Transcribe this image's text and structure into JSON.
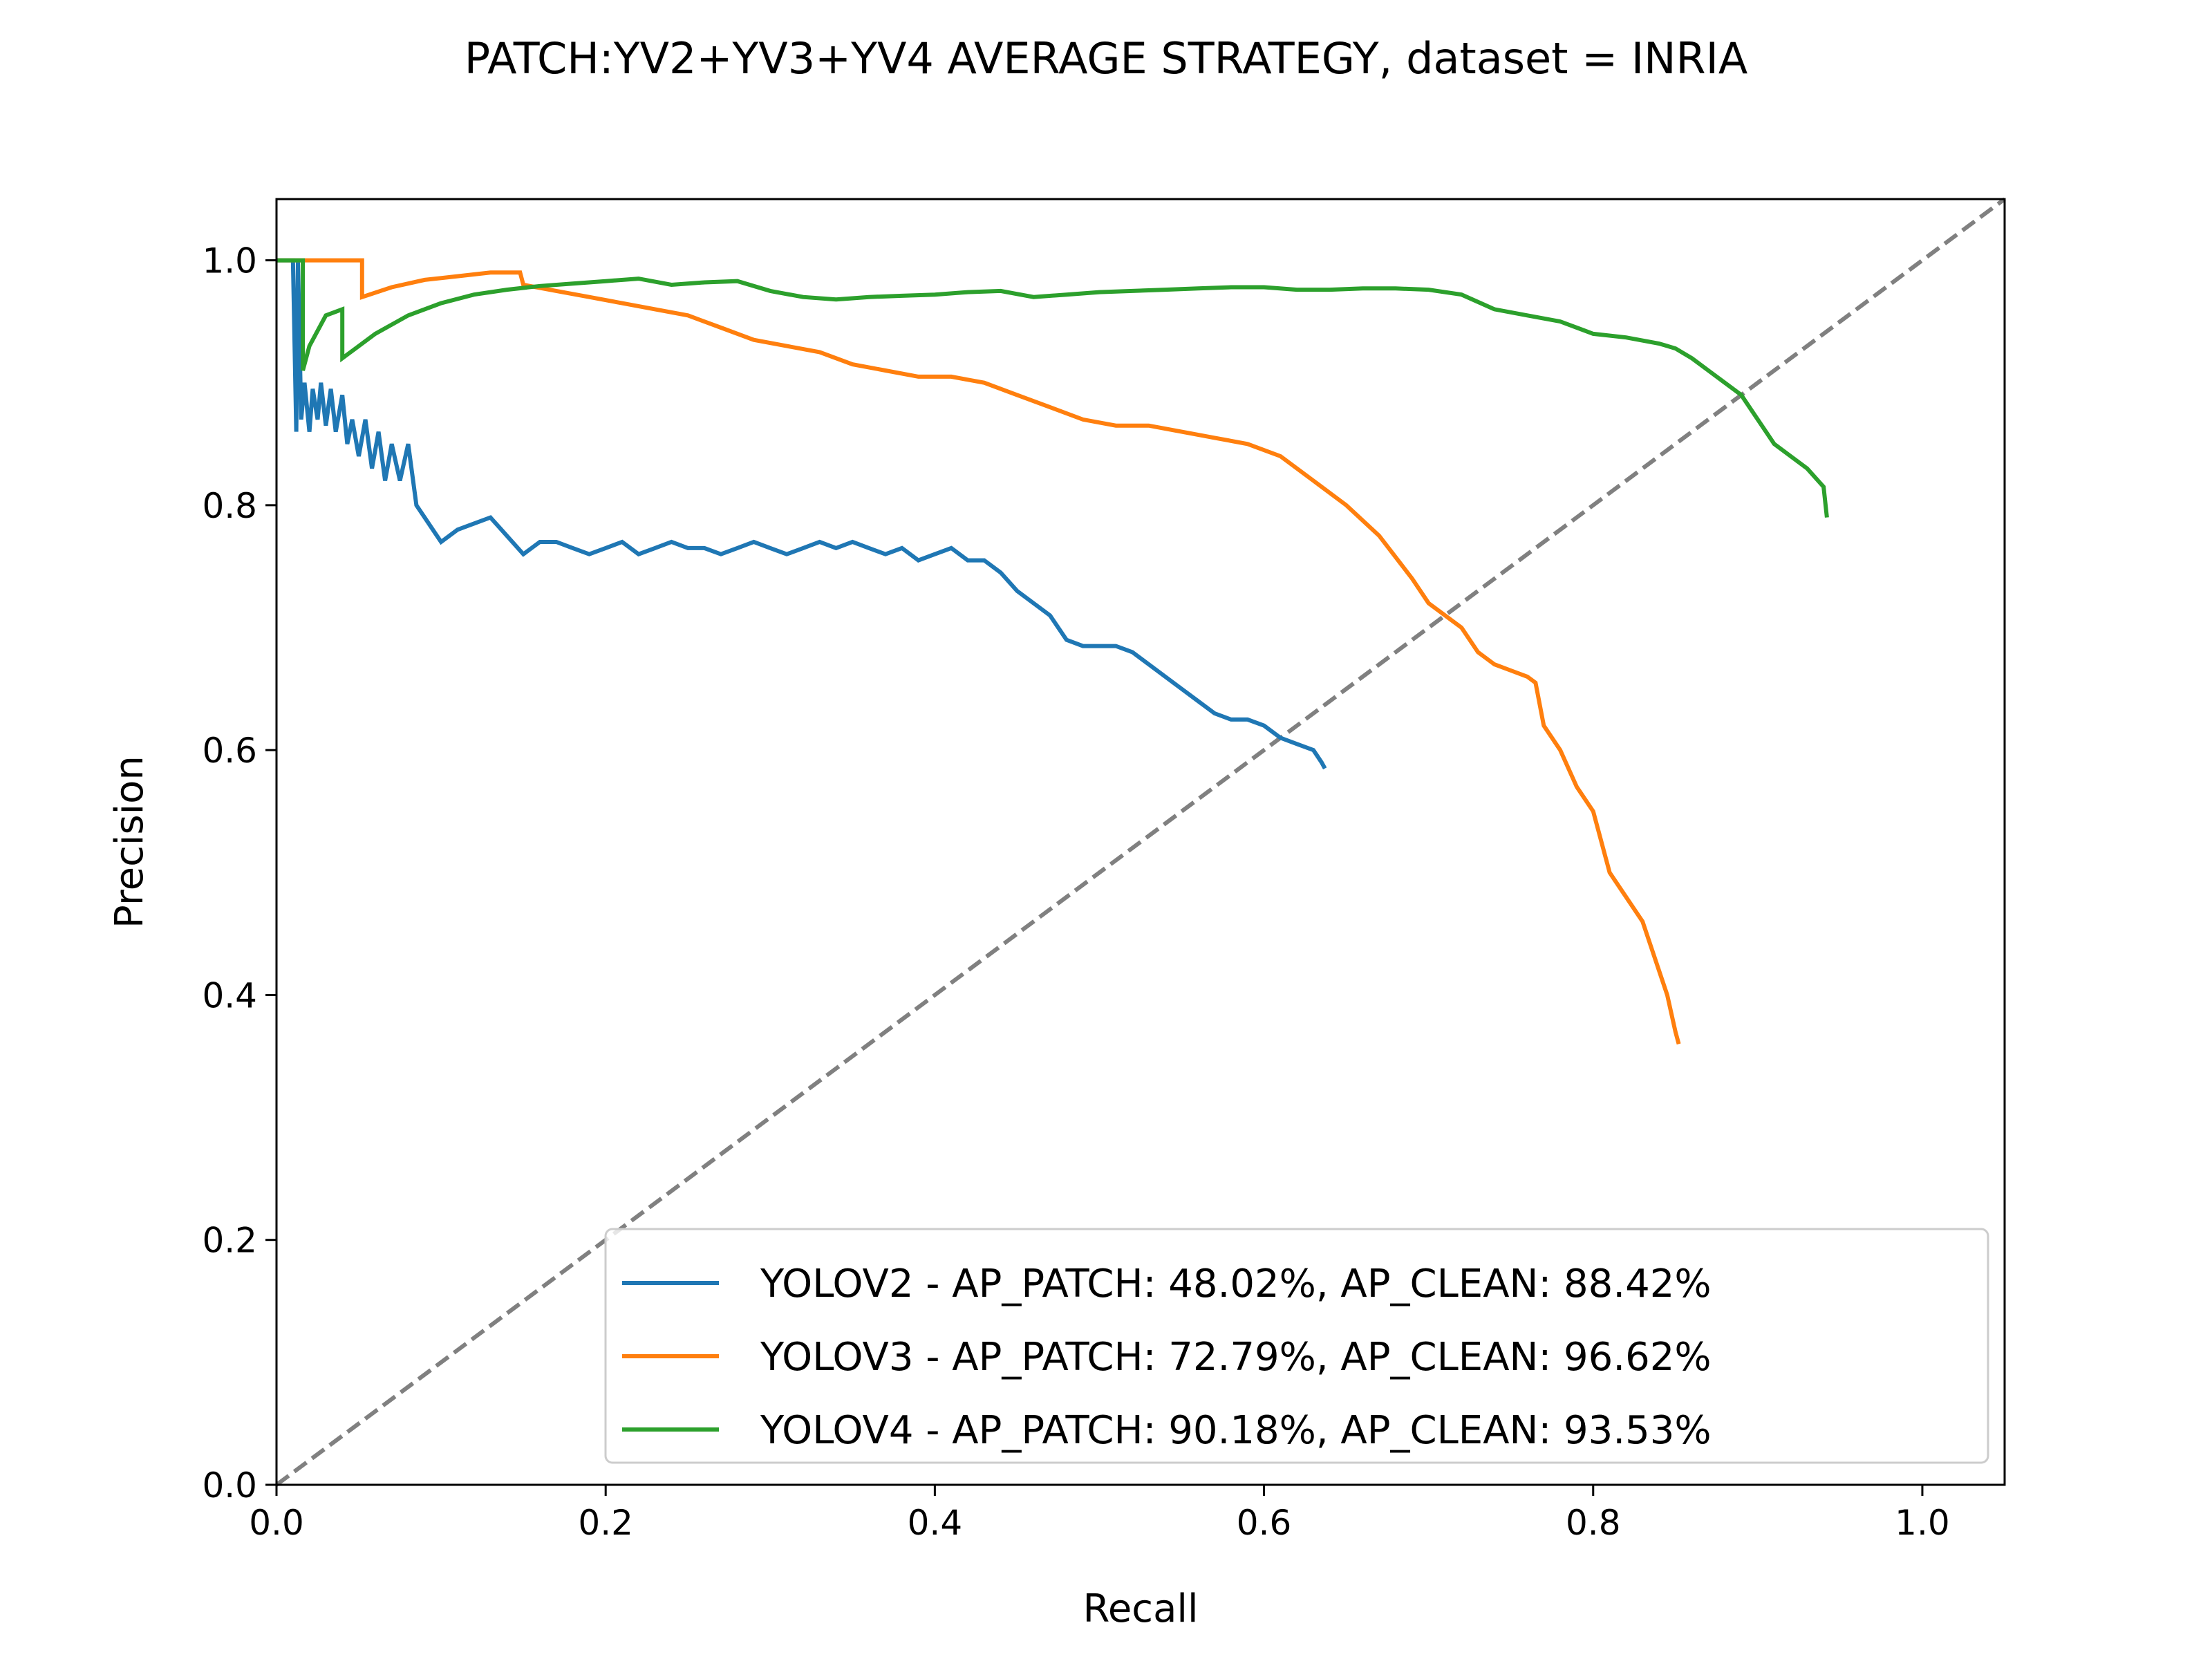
{
  "chart_data": {
    "type": "line",
    "title": "PATCH:YV2+YV3+YV4 AVERAGE STRATEGY, dataset = INRIA",
    "xlabel": "Recall",
    "ylabel": "Precision",
    "xlim": [
      0.0,
      1.05
    ],
    "ylim": [
      0.0,
      1.05
    ],
    "xticks": [
      "0.0",
      "0.2",
      "0.4",
      "0.6",
      "0.8",
      "1.0"
    ],
    "yticks": [
      "0.0",
      "0.2",
      "0.4",
      "0.6",
      "0.8",
      "1.0"
    ],
    "grid": false,
    "legend_position": "lower-right",
    "reference_line": {
      "x": [
        0.0,
        1.05
      ],
      "y": [
        0.0,
        1.05
      ],
      "color": "#808080",
      "style": "dashed"
    },
    "series": [
      {
        "name": "YOLOV2 - AP_PATCH: 48.02%, AP_CLEAN: 88.42%",
        "color": "#1f77b4",
        "x": [
          0.0,
          0.01,
          0.012,
          0.013,
          0.015,
          0.017,
          0.02,
          0.022,
          0.025,
          0.027,
          0.03,
          0.033,
          0.036,
          0.04,
          0.043,
          0.046,
          0.05,
          0.054,
          0.058,
          0.062,
          0.066,
          0.07,
          0.075,
          0.08,
          0.085,
          0.09,
          0.095,
          0.1,
          0.11,
          0.12,
          0.13,
          0.14,
          0.15,
          0.16,
          0.17,
          0.18,
          0.19,
          0.2,
          0.21,
          0.22,
          0.23,
          0.24,
          0.25,
          0.26,
          0.27,
          0.28,
          0.29,
          0.3,
          0.31,
          0.32,
          0.33,
          0.34,
          0.35,
          0.36,
          0.37,
          0.38,
          0.39,
          0.4,
          0.41,
          0.42,
          0.43,
          0.44,
          0.45,
          0.46,
          0.47,
          0.48,
          0.49,
          0.5,
          0.51,
          0.52,
          0.53,
          0.54,
          0.55,
          0.56,
          0.57,
          0.58,
          0.59,
          0.6,
          0.61,
          0.62,
          0.63,
          0.635,
          0.637
        ],
        "y": [
          1.0,
          1.0,
          0.86,
          1.0,
          0.87,
          0.9,
          0.86,
          0.895,
          0.87,
          0.9,
          0.865,
          0.895,
          0.86,
          0.89,
          0.85,
          0.87,
          0.84,
          0.87,
          0.83,
          0.86,
          0.82,
          0.85,
          0.82,
          0.85,
          0.8,
          0.79,
          0.78,
          0.77,
          0.78,
          0.785,
          0.79,
          0.775,
          0.76,
          0.77,
          0.77,
          0.765,
          0.76,
          0.765,
          0.77,
          0.76,
          0.765,
          0.77,
          0.765,
          0.765,
          0.76,
          0.765,
          0.77,
          0.765,
          0.76,
          0.765,
          0.77,
          0.765,
          0.77,
          0.765,
          0.76,
          0.765,
          0.755,
          0.76,
          0.765,
          0.755,
          0.755,
          0.745,
          0.73,
          0.72,
          0.71,
          0.69,
          0.685,
          0.685,
          0.685,
          0.68,
          0.67,
          0.66,
          0.65,
          0.64,
          0.63,
          0.625,
          0.625,
          0.62,
          0.61,
          0.605,
          0.6,
          0.59,
          0.585
        ]
      },
      {
        "name": "YOLOV3 - AP_PATCH: 72.79%, AP_CLEAN: 96.62%",
        "color": "#ff7f0e",
        "x": [
          0.0,
          0.052,
          0.052,
          0.07,
          0.09,
          0.11,
          0.13,
          0.148,
          0.15,
          0.17,
          0.19,
          0.21,
          0.23,
          0.25,
          0.27,
          0.29,
          0.31,
          0.33,
          0.35,
          0.37,
          0.39,
          0.41,
          0.43,
          0.45,
          0.47,
          0.49,
          0.51,
          0.53,
          0.55,
          0.57,
          0.59,
          0.61,
          0.63,
          0.65,
          0.67,
          0.69,
          0.7,
          0.71,
          0.72,
          0.73,
          0.74,
          0.75,
          0.76,
          0.765,
          0.77,
          0.78,
          0.79,
          0.8,
          0.81,
          0.82,
          0.83,
          0.84,
          0.845,
          0.85,
          0.852
        ],
        "y": [
          1.0,
          1.0,
          0.97,
          0.978,
          0.984,
          0.987,
          0.99,
          0.99,
          0.98,
          0.975,
          0.97,
          0.965,
          0.96,
          0.955,
          0.945,
          0.935,
          0.93,
          0.925,
          0.915,
          0.91,
          0.905,
          0.905,
          0.9,
          0.89,
          0.88,
          0.87,
          0.865,
          0.865,
          0.86,
          0.855,
          0.85,
          0.84,
          0.82,
          0.8,
          0.775,
          0.74,
          0.72,
          0.71,
          0.7,
          0.68,
          0.67,
          0.665,
          0.66,
          0.655,
          0.62,
          0.6,
          0.57,
          0.55,
          0.5,
          0.48,
          0.46,
          0.42,
          0.4,
          0.37,
          0.36
        ]
      },
      {
        "name": "YOLOV4 - AP_PATCH: 90.18%, AP_CLEAN: 93.53%",
        "color": "#2ca02c",
        "x": [
          0.0,
          0.016,
          0.016,
          0.02,
          0.03,
          0.04,
          0.04,
          0.06,
          0.08,
          0.1,
          0.12,
          0.14,
          0.16,
          0.18,
          0.2,
          0.22,
          0.24,
          0.26,
          0.28,
          0.3,
          0.32,
          0.34,
          0.36,
          0.38,
          0.4,
          0.42,
          0.44,
          0.46,
          0.48,
          0.5,
          0.52,
          0.54,
          0.56,
          0.58,
          0.6,
          0.62,
          0.64,
          0.66,
          0.68,
          0.7,
          0.72,
          0.74,
          0.76,
          0.78,
          0.8,
          0.82,
          0.84,
          0.85,
          0.86,
          0.87,
          0.88,
          0.89,
          0.9,
          0.91,
          0.92,
          0.93,
          0.94,
          0.942
        ],
        "y": [
          1.0,
          1.0,
          0.91,
          0.93,
          0.955,
          0.96,
          0.92,
          0.94,
          0.955,
          0.965,
          0.972,
          0.976,
          0.979,
          0.981,
          0.983,
          0.985,
          0.98,
          0.982,
          0.983,
          0.975,
          0.97,
          0.968,
          0.97,
          0.971,
          0.972,
          0.974,
          0.975,
          0.97,
          0.972,
          0.974,
          0.975,
          0.976,
          0.977,
          0.978,
          0.978,
          0.976,
          0.976,
          0.977,
          0.977,
          0.976,
          0.972,
          0.96,
          0.955,
          0.95,
          0.94,
          0.937,
          0.932,
          0.928,
          0.92,
          0.91,
          0.9,
          0.89,
          0.87,
          0.85,
          0.84,
          0.83,
          0.815,
          0.79
        ]
      }
    ]
  }
}
